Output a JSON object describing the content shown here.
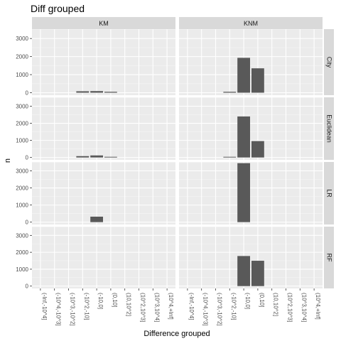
{
  "chart_data": {
    "type": "bar",
    "title": "Diff grouped",
    "xlabel": "Difference grouped",
    "ylabel": "n",
    "ylim": [
      0,
      3450
    ],
    "yticks": [
      0,
      1000,
      2000,
      3000
    ],
    "facet_cols": [
      "KM",
      "KNM"
    ],
    "facet_rows": [
      "City",
      "Euclidean",
      "LR",
      "RF"
    ],
    "categories": [
      "(-Inf,-10^4]",
      "(-10^4,-10^3]",
      "(-10^3,-10^2]",
      "(-10^2,-10]",
      "(-10,0]",
      "(0,10]",
      "(10,10^2]",
      "(10^2,10^3]",
      "(10^3,10^4]",
      "(10^4,+Inf]"
    ],
    "grid": true,
    "panels": [
      {
        "row": "City",
        "col": "KM",
        "values": [
          0,
          0,
          0,
          80,
          90,
          50,
          0,
          0,
          0,
          0
        ]
      },
      {
        "row": "City",
        "col": "KNM",
        "values": [
          0,
          0,
          0,
          50,
          1930,
          1350,
          0,
          0,
          0,
          0
        ]
      },
      {
        "row": "Euclidean",
        "col": "KM",
        "values": [
          0,
          0,
          0,
          80,
          120,
          40,
          0,
          0,
          0,
          0
        ]
      },
      {
        "row": "Euclidean",
        "col": "KNM",
        "values": [
          0,
          0,
          0,
          40,
          2400,
          960,
          0,
          0,
          0,
          0
        ]
      },
      {
        "row": "LR",
        "col": "KM",
        "values": [
          0,
          0,
          0,
          0,
          320,
          0,
          0,
          0,
          0,
          0
        ]
      },
      {
        "row": "LR",
        "col": "KNM",
        "values": [
          0,
          0,
          0,
          0,
          3450,
          0,
          0,
          0,
          0,
          0
        ]
      },
      {
        "row": "RF",
        "col": "KM",
        "values": [
          0,
          0,
          0,
          0,
          0,
          0,
          0,
          0,
          0,
          0
        ]
      },
      {
        "row": "RF",
        "col": "KNM",
        "values": [
          0,
          0,
          0,
          0,
          1780,
          1500,
          0,
          0,
          0,
          0
        ]
      }
    ],
    "colors": {
      "bar": "#595959",
      "panel_bg": "#ebebeb",
      "strip_bg": "#d9d9d9",
      "grid_major": "#ffffff",
      "grid_minor": "#f5f5f5"
    }
  }
}
